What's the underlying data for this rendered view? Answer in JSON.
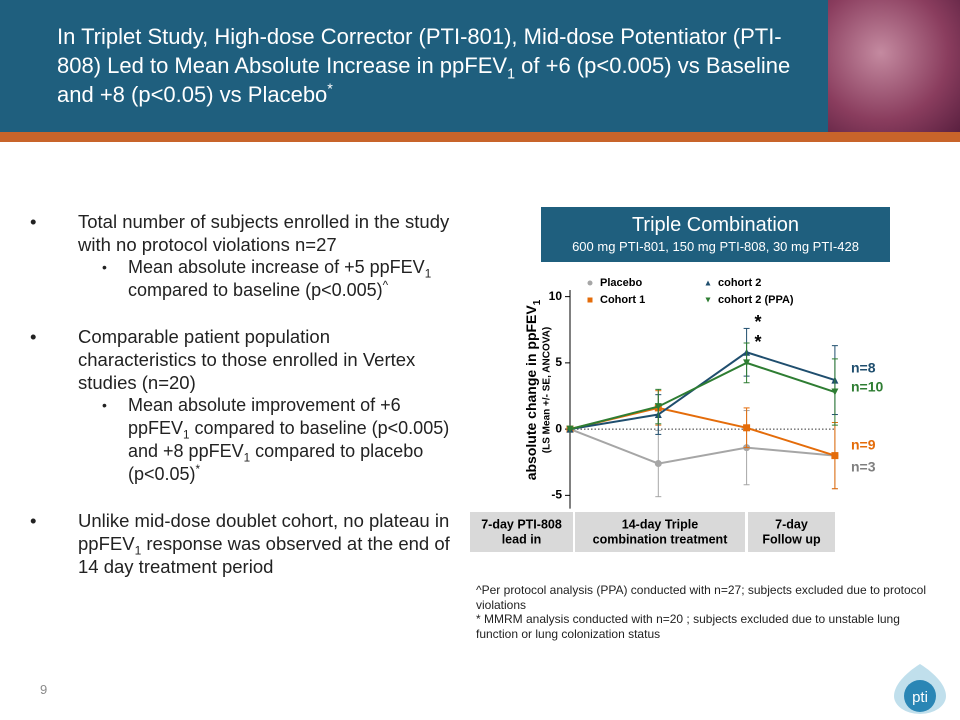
{
  "header": {
    "title": [
      {
        "t": "In Triplet Study, High-dose Corrector (PTI-801), Mid-dose Potentiator (PTI-808) Led to Mean Absolute Increase in ppFEV"
      },
      {
        "sub": "1"
      },
      {
        "t": " of +6 (p<0.005) vs Baseline and  +8 (p<0.05) vs Placebo"
      },
      {
        "sup": "*"
      }
    ]
  },
  "bullets": [
    {
      "level": 1,
      "text": [
        {
          "t": "Total number of subjects enrolled in the study with no protocol violations n=27"
        }
      ]
    },
    {
      "level": 2,
      "text": [
        {
          "t": "Mean absolute increase of +5 ppFEV"
        },
        {
          "sub": "1"
        },
        {
          "t": " compared to baseline (p<0.005)"
        },
        {
          "sup": "^"
        }
      ]
    },
    {
      "level": 1,
      "text": [
        {
          "t": "Comparable patient population characteristics to those enrolled in Vertex studies (n=20)"
        }
      ]
    },
    {
      "level": 2,
      "text": [
        {
          "t": "Mean absolute improvement of +6 ppFEV"
        },
        {
          "sub": "1"
        },
        {
          "t": " compared to baseline (p<0.005) and +8 ppFEV"
        },
        {
          "sub": "1"
        },
        {
          "t": " compared to placebo (p<0.05)"
        },
        {
          "sup": "*"
        }
      ]
    },
    {
      "level": 1,
      "text": [
        {
          "t": "Unlike mid-dose doublet cohort, no plateau in ppFEV"
        },
        {
          "sub": "1"
        },
        {
          "t": " response was observed at the end of 14 day treatment period"
        }
      ]
    }
  ],
  "panel": {
    "title": "Triple Combination",
    "subtitle": "600 mg PTI-801, 150 mg PTI-808, 30 mg PTI-428"
  },
  "chart_data": {
    "type": "line",
    "y_label": [
      {
        "t": "absolute change in ppFEV"
      },
      {
        "sub": "1"
      }
    ],
    "y_sublabel": "(LS Mean +/- SE, ANCOVA)",
    "categories": [
      null,
      null,
      null,
      null
    ],
    "series": [
      {
        "name": "Placebo",
        "color": "#a6a6a6",
        "marker": "circle",
        "values": [
          0,
          -2.6,
          -1.4,
          -2.0
        ],
        "errors": [
          0,
          2.5,
          2.8,
          2.5
        ]
      },
      {
        "name": "Cohort 1",
        "color": "#e46c0a",
        "marker": "square",
        "values": [
          0,
          1.6,
          0.1,
          -2.0
        ],
        "errors": [
          0,
          1.3,
          1.5,
          2.5
        ]
      },
      {
        "name": "cohort 2",
        "color": "#1f4e6e",
        "marker": "triangle-up",
        "values": [
          0,
          1.1,
          5.8,
          3.7
        ],
        "errors": [
          0,
          1.5,
          1.8,
          2.6
        ]
      },
      {
        "name": "cohort 2 (PPA)",
        "color": "#2e7d32",
        "marker": "triangle-down",
        "values": [
          0,
          1.7,
          5.0,
          2.8
        ],
        "errors": [
          0,
          1.3,
          1.5,
          2.5
        ]
      }
    ],
    "ylim": [
      -6,
      10.5
    ],
    "yticks": [
      -5,
      0,
      5,
      10
    ],
    "baseline_dotted": true,
    "significance": [
      "*",
      "*"
    ],
    "annotations": [
      {
        "text": "n=8",
        "color": "#1f4e6e"
      },
      {
        "text": "n=10",
        "color": "#2e7d32"
      },
      {
        "text": "n=9",
        "color": "#e46c0a"
      },
      {
        "text": "n=3",
        "color": "#7f7f7f"
      }
    ],
    "phases": [
      [
        "7-day PTI-808",
        "lead in"
      ],
      [
        "14-day Triple",
        "combination treatment"
      ],
      [
        "7-day",
        "Follow up"
      ]
    ]
  },
  "footnotes": [
    "^Per protocol analysis (PPA) conducted with n=27; subjects excluded due to protocol violations",
    "* MMRM analysis conducted with n=20 ; subjects excluded due to unstable lung function or lung colonization status"
  ],
  "page_number": "9",
  "logo": "pti"
}
